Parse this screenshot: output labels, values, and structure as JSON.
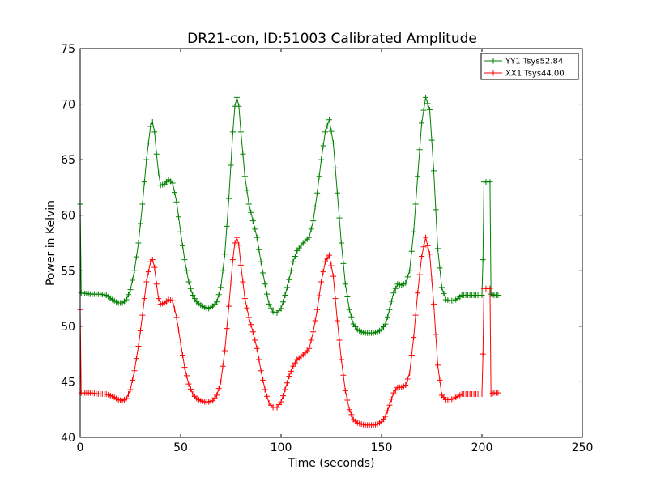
{
  "chart_data": {
    "type": "line",
    "title": "DR21-con, ID:51003 Calibrated Amplitude",
    "xlabel": "Time (seconds)",
    "ylabel": "Power in Kelvin",
    "xlim": [
      0,
      250
    ],
    "ylim": [
      40,
      75
    ],
    "xticks": [
      0,
      50,
      100,
      150,
      200,
      250
    ],
    "yticks": [
      40,
      45,
      50,
      55,
      60,
      65,
      70,
      75
    ],
    "grid": false,
    "legend_position": "top-right",
    "series": [
      {
        "name": "YY1 Tsys52.84",
        "color": "#008000",
        "marker": "plus",
        "points": [
          [
            0,
            61.0
          ],
          [
            0.5,
            53.0
          ],
          [
            5,
            52.9
          ],
          [
            10,
            52.9
          ],
          [
            13,
            52.8
          ],
          [
            16,
            52.4
          ],
          [
            19,
            52.1
          ],
          [
            21,
            52.1
          ],
          [
            23,
            52.4
          ],
          [
            25,
            53.3
          ],
          [
            27,
            55.0
          ],
          [
            29,
            57.5
          ],
          [
            31,
            61.0
          ],
          [
            33,
            65.0
          ],
          [
            35,
            68.0
          ],
          [
            36,
            68.4
          ],
          [
            37,
            67.5
          ],
          [
            38,
            65.5
          ],
          [
            39,
            63.8
          ],
          [
            40,
            62.7
          ],
          [
            42,
            62.8
          ],
          [
            44,
            63.2
          ],
          [
            46,
            62.9
          ],
          [
            48,
            61.2
          ],
          [
            50,
            58.5
          ],
          [
            52,
            56.0
          ],
          [
            54,
            54.0
          ],
          [
            56,
            52.8
          ],
          [
            58,
            52.2
          ],
          [
            60,
            51.9
          ],
          [
            62,
            51.7
          ],
          [
            64,
            51.6
          ],
          [
            66,
            51.8
          ],
          [
            68,
            52.2
          ],
          [
            70,
            53.5
          ],
          [
            72,
            56.5
          ],
          [
            74,
            61.5
          ],
          [
            76,
            67.5
          ],
          [
            77,
            69.8
          ],
          [
            78,
            70.6
          ],
          [
            79,
            69.8
          ],
          [
            80,
            67.5
          ],
          [
            82,
            63.5
          ],
          [
            84,
            61.0
          ],
          [
            86,
            59.5
          ],
          [
            88,
            58.0
          ],
          [
            90,
            55.8
          ],
          [
            92,
            53.8
          ],
          [
            94,
            52.0
          ],
          [
            96,
            51.3
          ],
          [
            98,
            51.2
          ],
          [
            100,
            51.6
          ],
          [
            102,
            52.8
          ],
          [
            104,
            54.2
          ],
          [
            106,
            55.8
          ],
          [
            108,
            56.8
          ],
          [
            110,
            57.3
          ],
          [
            112,
            57.7
          ],
          [
            114,
            58.0
          ],
          [
            116,
            59.5
          ],
          [
            118,
            62.0
          ],
          [
            120,
            65.0
          ],
          [
            122,
            67.5
          ],
          [
            124,
            68.6
          ],
          [
            126,
            66.5
          ],
          [
            128,
            62.0
          ],
          [
            130,
            57.5
          ],
          [
            132,
            53.8
          ],
          [
            134,
            51.5
          ],
          [
            136,
            50.2
          ],
          [
            138,
            49.7
          ],
          [
            140,
            49.5
          ],
          [
            142,
            49.4
          ],
          [
            144,
            49.4
          ],
          [
            146,
            49.4
          ],
          [
            148,
            49.5
          ],
          [
            150,
            49.7
          ],
          [
            152,
            50.2
          ],
          [
            154,
            51.5
          ],
          [
            156,
            53.0
          ],
          [
            158,
            53.8
          ],
          [
            160,
            53.7
          ],
          [
            162,
            53.9
          ],
          [
            164,
            55.0
          ],
          [
            166,
            58.5
          ],
          [
            168,
            63.5
          ],
          [
            170,
            68.3
          ],
          [
            172,
            70.6
          ],
          [
            174,
            69.5
          ],
          [
            176,
            64.0
          ],
          [
            178,
            57.0
          ],
          [
            180,
            53.5
          ],
          [
            182,
            52.4
          ],
          [
            184,
            52.3
          ],
          [
            186,
            52.3
          ],
          [
            188,
            52.5
          ],
          [
            190,
            52.8
          ],
          [
            192,
            52.8
          ],
          [
            194,
            52.8
          ],
          [
            196,
            52.8
          ],
          [
            198,
            52.8
          ],
          [
            200,
            52.8
          ],
          [
            200.5,
            56.0
          ],
          [
            201,
            63.0
          ],
          [
            203,
            63.0
          ],
          [
            204,
            63.0
          ],
          [
            204.5,
            52.9
          ],
          [
            206,
            52.8
          ],
          [
            208,
            52.8
          ]
        ]
      },
      {
        "name": "XX1 Tsys44.00",
        "color": "#ff0000",
        "marker": "plus",
        "points": [
          [
            0,
            51.5
          ],
          [
            0.5,
            44.0
          ],
          [
            5,
            44.0
          ],
          [
            10,
            43.9
          ],
          [
            13,
            43.9
          ],
          [
            16,
            43.7
          ],
          [
            19,
            43.4
          ],
          [
            21,
            43.3
          ],
          [
            23,
            43.5
          ],
          [
            25,
            44.3
          ],
          [
            27,
            46.0
          ],
          [
            29,
            48.2
          ],
          [
            31,
            51.0
          ],
          [
            33,
            54.0
          ],
          [
            35,
            55.8
          ],
          [
            36,
            56.0
          ],
          [
            37,
            55.3
          ],
          [
            38,
            53.8
          ],
          [
            39,
            52.5
          ],
          [
            40,
            52.0
          ],
          [
            42,
            52.1
          ],
          [
            44,
            52.4
          ],
          [
            46,
            52.3
          ],
          [
            48,
            50.8
          ],
          [
            50,
            48.5
          ],
          [
            52,
            46.3
          ],
          [
            54,
            44.8
          ],
          [
            56,
            43.9
          ],
          [
            58,
            43.5
          ],
          [
            60,
            43.3
          ],
          [
            62,
            43.2
          ],
          [
            64,
            43.2
          ],
          [
            66,
            43.3
          ],
          [
            68,
            43.8
          ],
          [
            70,
            45.0
          ],
          [
            72,
            47.8
          ],
          [
            74,
            51.8
          ],
          [
            76,
            56.0
          ],
          [
            77,
            57.5
          ],
          [
            78,
            58.0
          ],
          [
            79,
            57.3
          ],
          [
            80,
            55.5
          ],
          [
            82,
            52.5
          ],
          [
            84,
            50.8
          ],
          [
            86,
            49.5
          ],
          [
            88,
            48.0
          ],
          [
            90,
            46.0
          ],
          [
            92,
            44.3
          ],
          [
            94,
            43.1
          ],
          [
            96,
            42.7
          ],
          [
            98,
            42.7
          ],
          [
            100,
            43.2
          ],
          [
            102,
            44.3
          ],
          [
            104,
            45.5
          ],
          [
            106,
            46.4
          ],
          [
            108,
            47.0
          ],
          [
            110,
            47.3
          ],
          [
            112,
            47.6
          ],
          [
            114,
            48.0
          ],
          [
            116,
            49.5
          ],
          [
            118,
            51.5
          ],
          [
            120,
            54.0
          ],
          [
            122,
            55.8
          ],
          [
            124,
            56.4
          ],
          [
            126,
            54.5
          ],
          [
            128,
            50.5
          ],
          [
            130,
            47.0
          ],
          [
            132,
            44.2
          ],
          [
            134,
            42.5
          ],
          [
            136,
            41.6
          ],
          [
            138,
            41.3
          ],
          [
            140,
            41.2
          ],
          [
            142,
            41.1
          ],
          [
            144,
            41.1
          ],
          [
            146,
            41.1
          ],
          [
            148,
            41.2
          ],
          [
            150,
            41.4
          ],
          [
            152,
            41.9
          ],
          [
            154,
            42.9
          ],
          [
            156,
            44.0
          ],
          [
            158,
            44.5
          ],
          [
            160,
            44.5
          ],
          [
            162,
            44.7
          ],
          [
            164,
            45.8
          ],
          [
            166,
            49.0
          ],
          [
            168,
            53.0
          ],
          [
            170,
            56.3
          ],
          [
            172,
            58.0
          ],
          [
            174,
            56.5
          ],
          [
            176,
            52.0
          ],
          [
            178,
            46.5
          ],
          [
            180,
            43.8
          ],
          [
            182,
            43.4
          ],
          [
            184,
            43.4
          ],
          [
            186,
            43.5
          ],
          [
            188,
            43.7
          ],
          [
            190,
            43.9
          ],
          [
            192,
            43.9
          ],
          [
            194,
            43.9
          ],
          [
            196,
            43.9
          ],
          [
            198,
            43.9
          ],
          [
            200,
            43.9
          ],
          [
            200.5,
            47.5
          ],
          [
            201,
            53.4
          ],
          [
            203,
            53.4
          ],
          [
            204,
            53.4
          ],
          [
            204.5,
            43.9
          ],
          [
            206,
            44.0
          ],
          [
            208,
            44.0
          ]
        ]
      }
    ]
  }
}
